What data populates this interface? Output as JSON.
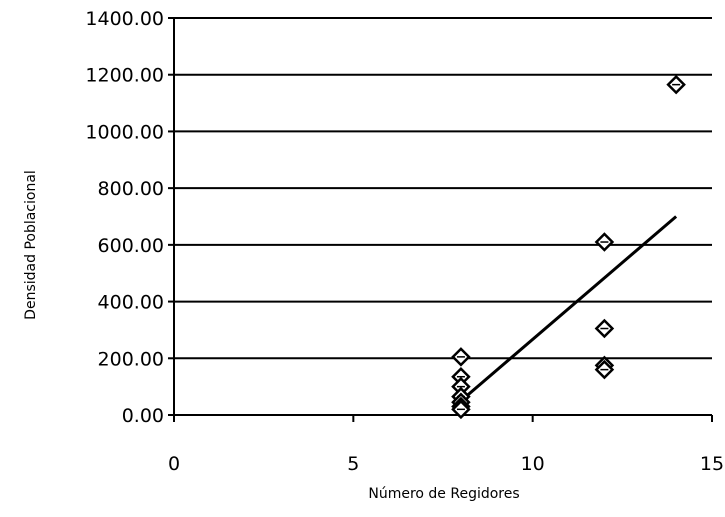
{
  "chart_data": {
    "type": "scatter",
    "xlabel": "Número de Regidores",
    "ylabel": "Densidad Poblacional",
    "xlim": [
      0,
      15
    ],
    "ylim": [
      0,
      1400
    ],
    "x_ticks": [
      "0",
      "5",
      "10",
      "15"
    ],
    "y_ticks": [
      "0.00",
      "200.00",
      "400.00",
      "600.00",
      "800.00",
      "1000.00",
      "1200.00",
      "1400.00"
    ],
    "grid": "horizontal",
    "legend": "none",
    "series": [
      {
        "points": [
          {
            "x": 8,
            "y": 205
          },
          {
            "x": 8,
            "y": 135
          },
          {
            "x": 8,
            "y": 100
          },
          {
            "x": 8,
            "y": 65
          },
          {
            "x": 8,
            "y": 45
          },
          {
            "x": 8,
            "y": 30
          },
          {
            "x": 8,
            "y": 20
          },
          {
            "x": 12,
            "y": 610
          },
          {
            "x": 12,
            "y": 305
          },
          {
            "x": 12,
            "y": 175
          },
          {
            "x": 12,
            "y": 160
          },
          {
            "x": 14,
            "y": 1165
          }
        ]
      }
    ],
    "trendline": {
      "x": [
        8,
        14
      ],
      "y": [
        50,
        700
      ]
    },
    "colors": {
      "marker_fill": "#ffffff",
      "marker_stroke": "#000000",
      "line": "#000000",
      "grid": "#000000"
    }
  }
}
